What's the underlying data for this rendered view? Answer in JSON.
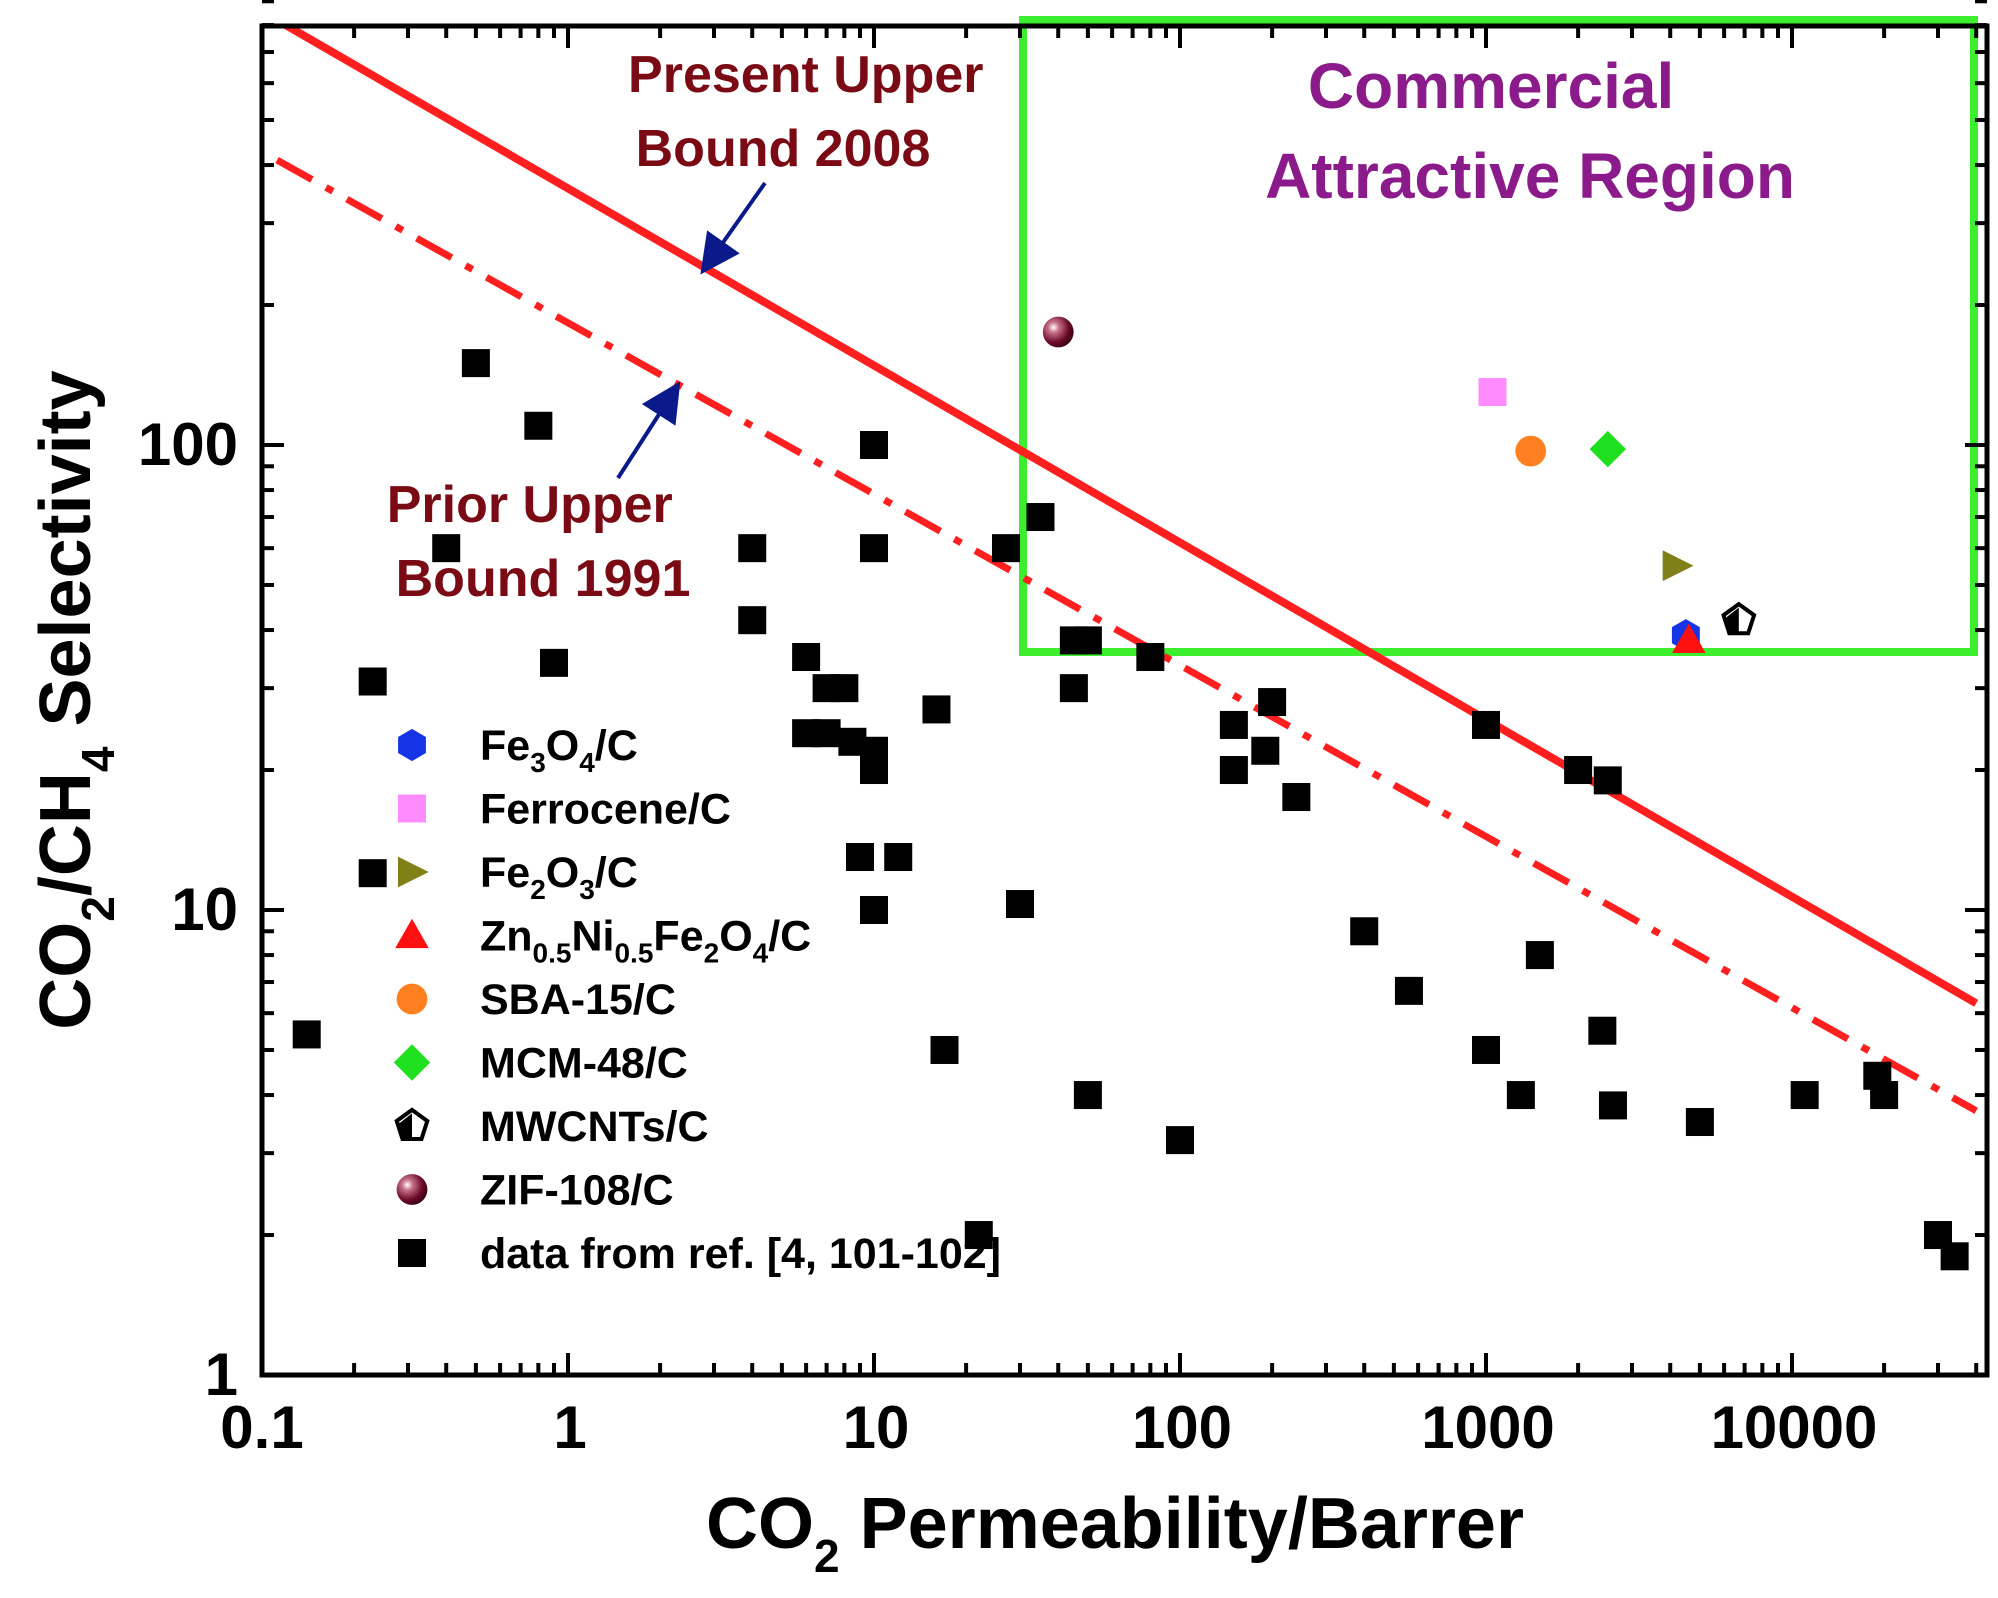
{
  "chart_data": {
    "type": "scatter",
    "xscale": "log",
    "yscale": "log",
    "xlim": [
      0.1,
      40000
    ],
    "ylim": [
      1,
      900
    ],
    "x_ticks": [
      "0.1",
      "1",
      "10",
      "100",
      "1000",
      "10000"
    ],
    "y_ticks": [
      "1",
      "10",
      "100"
    ],
    "xlabel": {
      "main": "CO",
      "sub": "2",
      "rest": " Permeability/Barrer"
    },
    "ylabel": {
      "p1": "CO",
      "s1": "2",
      "p2": "/CH",
      "s2": "4",
      "p3": " Selectivity"
    },
    "upper_bounds": [
      {
        "name": "Present Upper Bound 2008",
        "style": "solid",
        "color": "#ff1f1f",
        "points": [
          [
            0.112,
            820
          ],
          [
            40000,
            6.3
          ]
        ]
      },
      {
        "name": "Prior Upper Bound 1991",
        "style": "dash-dot",
        "color": "#ff1f1f",
        "points": [
          [
            0.112,
            410
          ],
          [
            40000,
            3.7
          ]
        ]
      }
    ],
    "annotations": {
      "present_line1": "Present Upper",
      "present_line2": "Bound 2008",
      "prior_line1": "Prior Upper",
      "prior_line2": "Bound 1991",
      "commercial_line1": "Commercial",
      "commercial_line2": "Attractive Region"
    },
    "commercial_region": {
      "x_min": 30,
      "x_max": 40000,
      "y_min": 35,
      "y_max": 900,
      "color": "#3dee2e"
    },
    "series": [
      {
        "key": "fe3o4",
        "marker": "hexagon",
        "color": "#1434e6",
        "points": [
          [
            4500,
            39
          ]
        ],
        "label": [
          {
            "t": "Fe"
          },
          {
            "t": "3",
            "sub": true
          },
          {
            "t": "O"
          },
          {
            "t": "4",
            "sub": true
          },
          {
            "t": "/C"
          }
        ]
      },
      {
        "key": "ferrocene",
        "marker": "square",
        "color": "#ff8cff",
        "points": [
          [
            1050,
            130
          ]
        ],
        "label": [
          {
            "t": "Ferrocene/C"
          }
        ]
      },
      {
        "key": "fe2o3",
        "marker": "triangle-right",
        "color": "#808018",
        "points": [
          [
            4200,
            55
          ]
        ],
        "label": [
          {
            "t": "Fe"
          },
          {
            "t": "2",
            "sub": true
          },
          {
            "t": "O"
          },
          {
            "t": "3",
            "sub": true
          },
          {
            "t": "/C"
          }
        ]
      },
      {
        "key": "znnife",
        "marker": "triangle-up",
        "color": "#ff1010",
        "points": [
          [
            4600,
            38
          ]
        ],
        "label": [
          {
            "t": "Zn"
          },
          {
            "t": "0.5",
            "sub": true
          },
          {
            "t": "Ni"
          },
          {
            "t": "0.5",
            "sub": true
          },
          {
            "t": "Fe"
          },
          {
            "t": "2",
            "sub": true
          },
          {
            "t": "O"
          },
          {
            "t": "4",
            "sub": true
          },
          {
            "t": "/C"
          }
        ]
      },
      {
        "key": "sba15",
        "marker": "circle",
        "color": "#ff8020",
        "points": [
          [
            1400,
            97
          ]
        ],
        "label": [
          {
            "t": "SBA-15/C"
          }
        ]
      },
      {
        "key": "mcm48",
        "marker": "diamond",
        "color": "#1fe01f",
        "points": [
          [
            2500,
            98
          ]
        ],
        "label": [
          {
            "t": "MCM-48/C"
          }
        ]
      },
      {
        "key": "mwcnts",
        "marker": "pentagon",
        "color": "#000000",
        "points": [
          [
            6700,
            42
          ]
        ],
        "label": [
          {
            "t": "MWCNTs/C"
          }
        ]
      },
      {
        "key": "zif108",
        "marker": "sphere",
        "color": "#6a0a28",
        "points": [
          [
            40,
            175
          ]
        ],
        "label": [
          {
            "t": "ZIF-108/C"
          }
        ]
      },
      {
        "key": "ref",
        "marker": "square",
        "color": "#000000",
        "label": [
          {
            "t": "data from ref. [4, 101-102]"
          }
        ],
        "points": [
          [
            0.14,
            5.4
          ],
          [
            0.23,
            31
          ],
          [
            0.23,
            12
          ],
          [
            0.4,
            60
          ],
          [
            0.5,
            150
          ],
          [
            0.8,
            110
          ],
          [
            0.9,
            34
          ],
          [
            4,
            60
          ],
          [
            4,
            42
          ],
          [
            6,
            35
          ],
          [
            6,
            24
          ],
          [
            7,
            30
          ],
          [
            7,
            24
          ],
          [
            8,
            30
          ],
          [
            8.5,
            23
          ],
          [
            9,
            13
          ],
          [
            10,
            100
          ],
          [
            10,
            60
          ],
          [
            10,
            22
          ],
          [
            10,
            20
          ],
          [
            10,
            10
          ],
          [
            12,
            13
          ],
          [
            16,
            27
          ],
          [
            17,
            5
          ],
          [
            22,
            2
          ],
          [
            27,
            60
          ],
          [
            30,
            10.3
          ],
          [
            35,
            70
          ],
          [
            45,
            38
          ],
          [
            45,
            30
          ],
          [
            50,
            38
          ],
          [
            50,
            4
          ],
          [
            80,
            35
          ],
          [
            100,
            3.2
          ],
          [
            150,
            25
          ],
          [
            150,
            20
          ],
          [
            190,
            22
          ],
          [
            200,
            28
          ],
          [
            240,
            17.5
          ],
          [
            400,
            9
          ],
          [
            560,
            6.7
          ],
          [
            1000,
            25
          ],
          [
            1000,
            5
          ],
          [
            1300,
            4
          ],
          [
            1500,
            8
          ],
          [
            2000,
            20
          ],
          [
            2400,
            5.5
          ],
          [
            2500,
            19
          ],
          [
            2600,
            3.8
          ],
          [
            5000,
            3.5
          ],
          [
            11000,
            4
          ],
          [
            19000,
            4.4
          ],
          [
            20000,
            4
          ],
          [
            30000,
            2
          ],
          [
            34000,
            1.8
          ]
        ]
      }
    ]
  }
}
